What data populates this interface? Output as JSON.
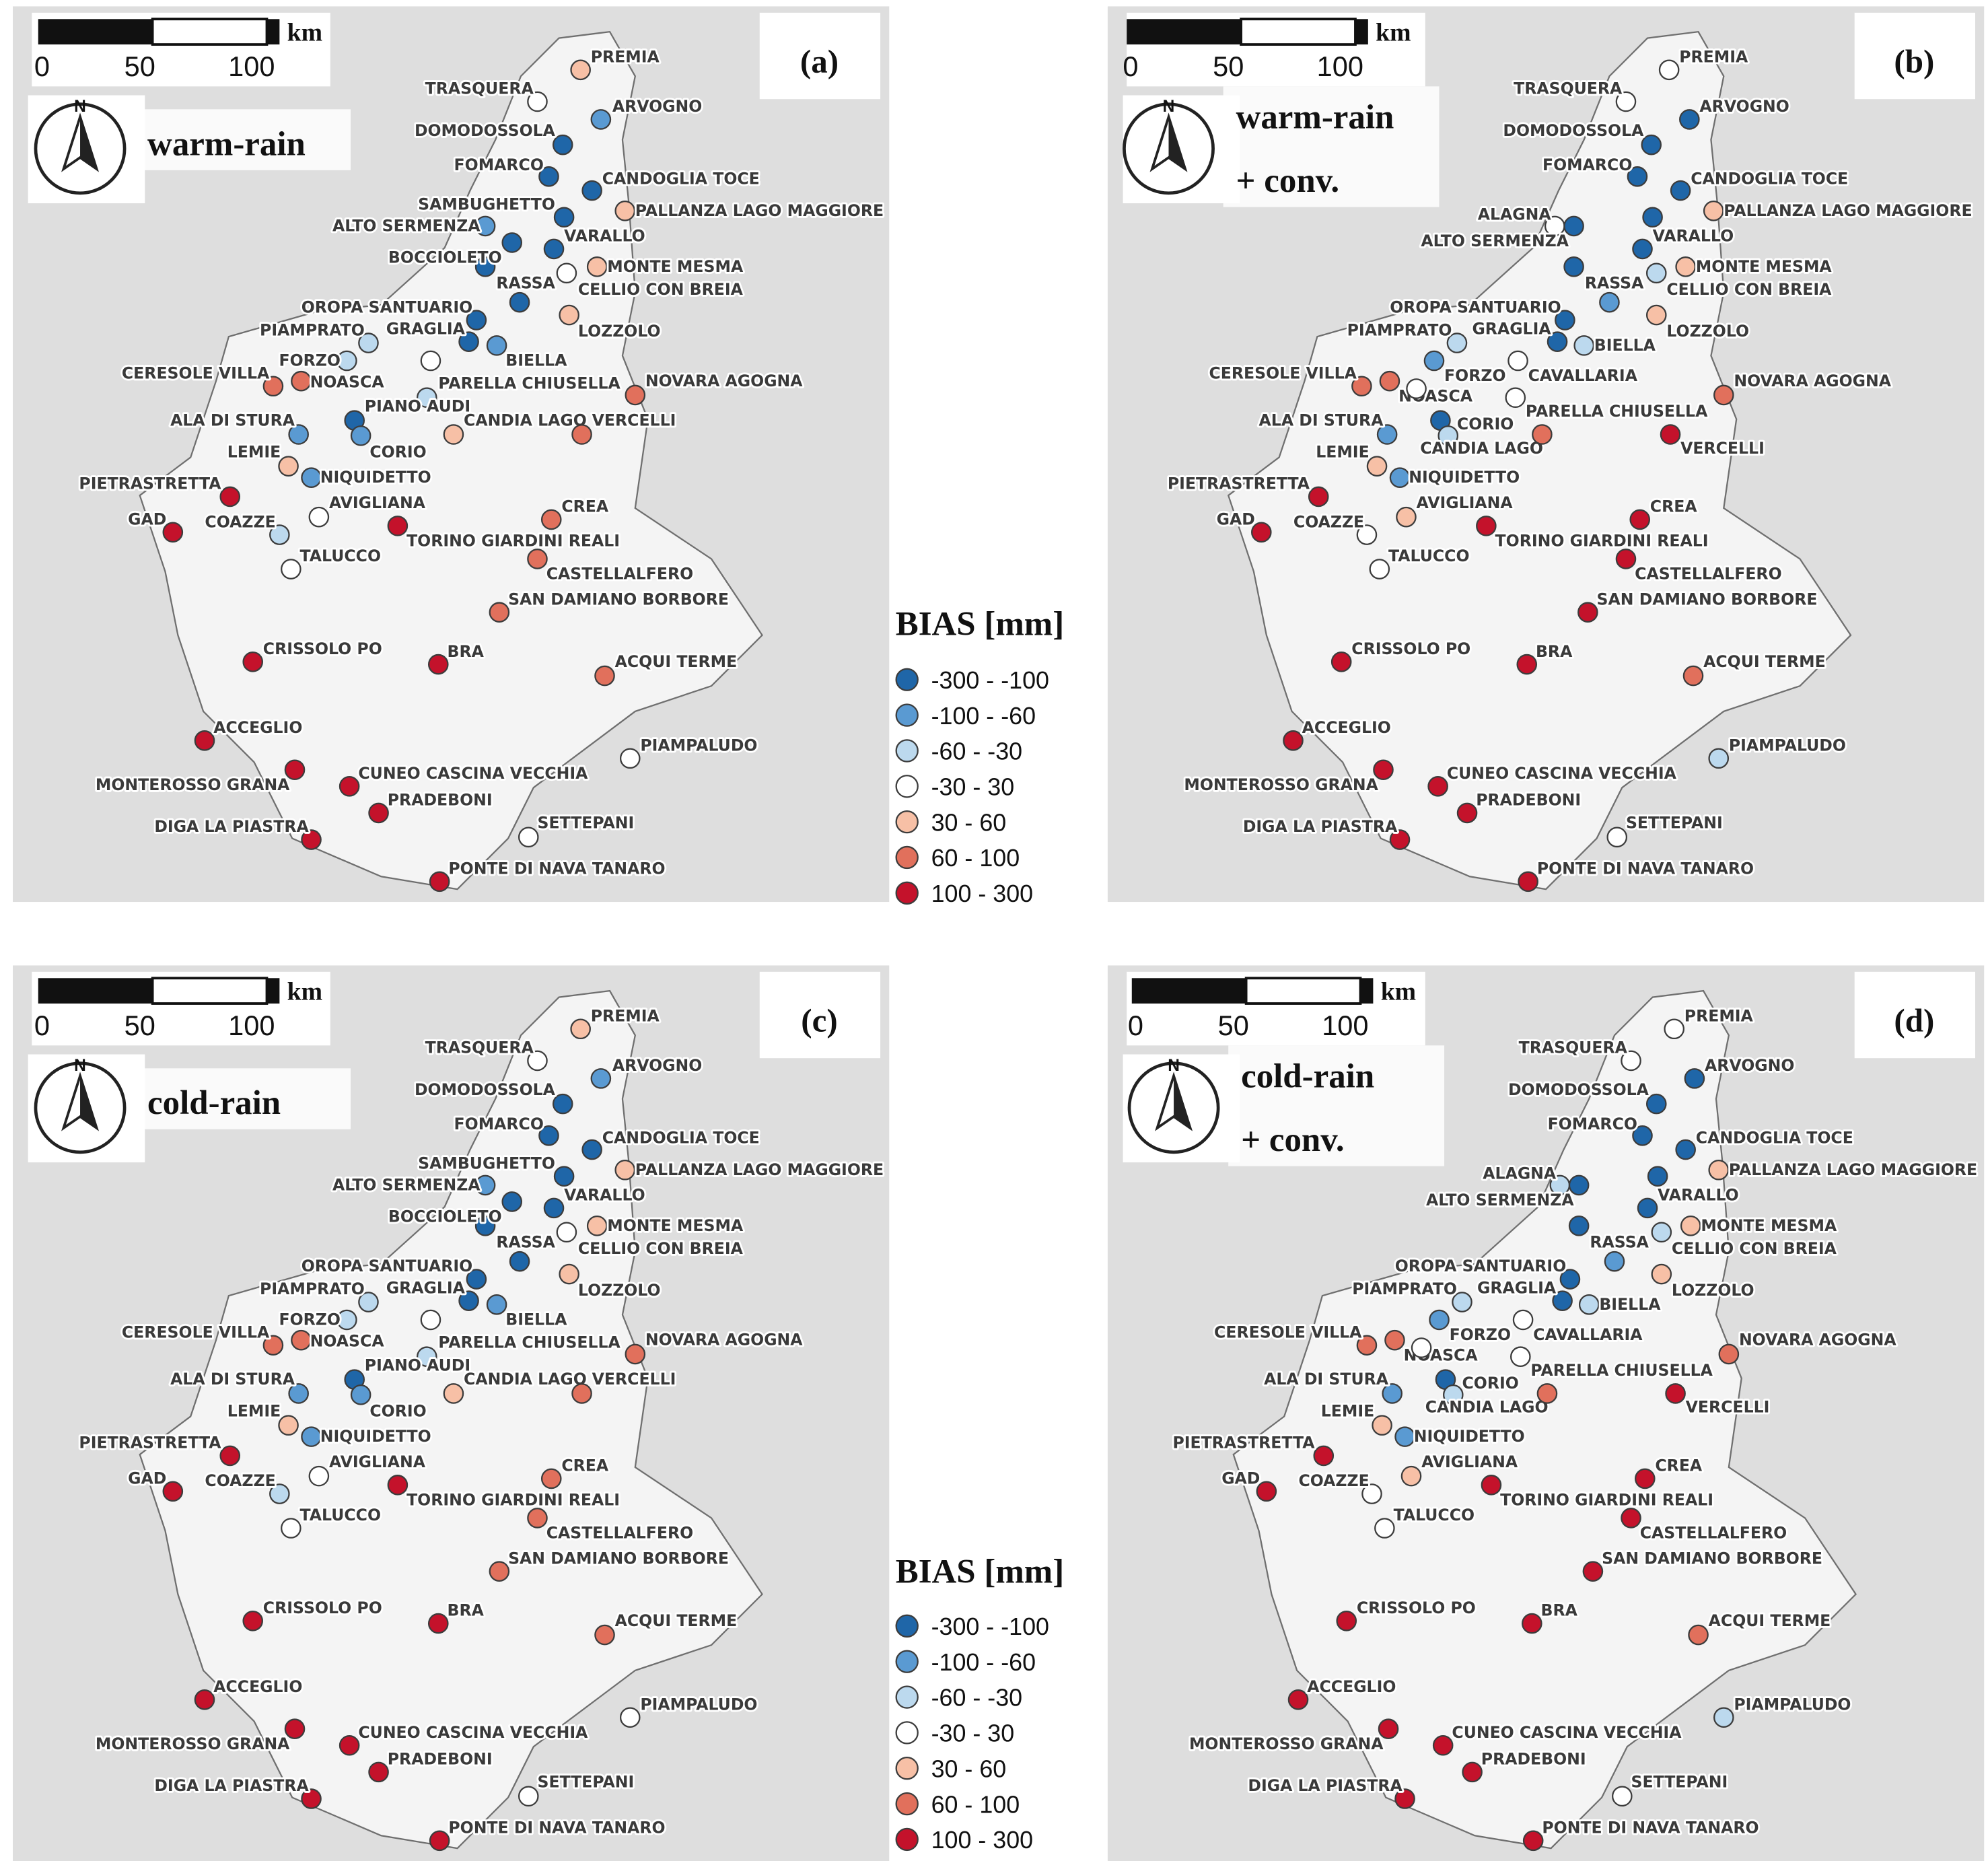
{
  "north": "N",
  "scalebar": {
    "ticks": [
      0,
      50,
      100
    ],
    "unit": "km"
  },
  "legend": {
    "title": "BIAS [mm]",
    "classes": [
      {
        "label": "-300 - -100",
        "color": "#1f66a8"
      },
      {
        "label": "-100 - -60",
        "color": "#5a9ad2"
      },
      {
        "label": "-60 - -30",
        "color": "#bcd9ee"
      },
      {
        "label": "-30 - 30",
        "color": "#ffffff"
      },
      {
        "label": "30 - 60",
        "color": "#f7c0a6"
      },
      {
        "label": "60 - 100",
        "color": "#e1705c"
      },
      {
        "label": "100 - 300",
        "color": "#c4122b"
      }
    ]
  },
  "panels": [
    {
      "label": "(a)",
      "title": [
        "warm-rain"
      ],
      "station_names": [
        "PREMIA",
        "TRASQUERA",
        "ARVOGNO",
        "DOMODOSSOLA",
        "FOMARCO",
        "CANDOGLIA TOCE",
        "SAMBUGHETTO",
        "PALLANZA LAGO MAGGIORE",
        "ALTO SERMENZA",
        "VARALLO",
        null,
        "BOCCIOLETO",
        "RASSA",
        "MONTE MESMA",
        "CELLIO CON BREIA",
        "OROPA SANTUARIO",
        "LOZZOLO",
        "PIAMPRATO",
        "GRAGLIA",
        "BIELLA",
        "FORZO",
        "CERESOLE VILLA",
        "NOASCA",
        null,
        "PARELLA CHIUSELLA",
        "NOVARA AGOGNA",
        "PIANO AUDI",
        "CORIO",
        "ALA DI STURA",
        "CANDIA LAGO",
        "VERCELLI",
        "LEMIE",
        "NIQUIDETTO",
        "PIETRASTRETTA",
        "AVIGLIANA",
        "GAD",
        "COAZZE",
        "TORINO GIARDINI REALI",
        "CREA",
        "TALUCCO",
        "CASTELLALFERO",
        "SAN DAMIANO BORBORE",
        "CRISSOLO PO",
        "BRA",
        "ACQUI TERME",
        "ACCEGLIO",
        "PIAMPALUDO",
        "MONTEROSSO GRANA",
        "CUNEO CASCINA VECCHIA",
        "PRADEBONI",
        "DIGA LA PIASTRA",
        "SETTEPANI",
        "PONTE DI NAVA TANARO"
      ],
      "station_colors": [
        "#f7c0a6",
        "#ffffff",
        "#5a9ad2",
        "#1f66a8",
        "#1f66a8",
        "#1f66a8",
        "#1f66a8",
        "#f7c0a6",
        "#5a9ad2",
        "#1f66a8",
        "#1f66a8",
        "#1f66a8",
        "#1f66a8",
        "#f7c0a6",
        "#ffffff",
        "#1f66a8",
        "#f7c0a6",
        "#bcd9ee",
        "#1f66a8",
        "#5a9ad2",
        "#bcd9ee",
        "#e1705c",
        "#e1705c",
        "#ffffff",
        "#bcd9ee",
        "#e1705c",
        "#1f66a8",
        "#5a9ad2",
        "#5a9ad2",
        "#f7c0a6",
        "#e1705c",
        "#f7c0a6",
        "#5a9ad2",
        "#c4122b",
        "#ffffff",
        "#c4122b",
        "#bcd9ee",
        "#c4122b",
        "#e1705c",
        "#ffffff",
        "#e1705c",
        "#e1705c",
        "#c4122b",
        "#c4122b",
        "#e1705c",
        "#c4122b",
        "#ffffff",
        "#c4122b",
        "#c4122b",
        "#c4122b",
        "#c4122b",
        "#ffffff",
        "#c4122b"
      ]
    },
    {
      "label": "(b)",
      "title": [
        "warm-rain",
        "+ conv."
      ],
      "station_names": [
        "PREMIA",
        "TRASQUERA",
        "ARVOGNO",
        "DOMODOSSOLA",
        "FOMARCO",
        "CANDOGLIA TOCE",
        "PALLANZA LAGO MAGGIORE",
        "ALAGNA",
        "ALTO SERMENZA",
        "VARALLO",
        null,
        null,
        "MONTE MESMA",
        "CELLIO CON BREIA",
        "RASSA",
        "OROPA SANTUARIO",
        "LOZZOLO",
        "GRAGLIA",
        "PIAMPRATO",
        "BIELLA",
        "FORZO",
        "CAVALLARIA",
        "CERESOLE VILLA",
        "NOASCA",
        null,
        "PARELLA CHIUSELLA",
        "NOVARA AGOGNA",
        "CORIO",
        "CANDIA LAGO",
        null,
        "ALA DI STURA",
        "VERCELLI",
        "LEMIE",
        "NIQUIDETTO",
        "PIETRASTRETTA",
        "AVIGLIANA",
        "GAD",
        "COAZZE",
        "CREA",
        "TORINO GIARDINI REALI",
        "TALUCCO",
        "CASTELLALFERO",
        "SAN DAMIANO BORBORE",
        "CRISSOLO PO",
        "BRA",
        "ACQUI TERME",
        "ACCEGLIO",
        "PIAMPALUDO",
        "MONTEROSSO GRANA",
        "CUNEO CASCINA VECCHIA",
        "PRADEBONI",
        "DIGA LA PIASTRA",
        "SETTEPANI",
        "PONTE DI NAVA TANARO"
      ],
      "station_colors": [
        "#ffffff",
        "#ffffff",
        "#1f66a8",
        "#1f66a8",
        "#1f66a8",
        "#1f66a8",
        "#f7c0a6",
        "#ffffff",
        "#1f66a8",
        "#1f66a8",
        "#1f66a8",
        "#1f66a8",
        "#f7c0a6",
        "#bcd9ee",
        "#5a9ad2",
        "#1f66a8",
        "#f7c0a6",
        "#1f66a8",
        "#bcd9ee",
        "#bcd9ee",
        "#5a9ad2",
        "#ffffff",
        "#e1705c",
        "#e1705c",
        "#ffffff",
        "#ffffff",
        "#e1705c",
        "#1f66a8",
        "#bcd9ee",
        "#e1705c",
        "#5a9ad2",
        "#c4122b",
        "#f7c0a6",
        "#5a9ad2",
        "#c4122b",
        "#f7c0a6",
        "#c4122b",
        "#ffffff",
        "#c4122b",
        "#c4122b",
        "#ffffff",
        "#c4122b",
        "#c4122b",
        "#c4122b",
        "#c4122b",
        "#e1705c",
        "#c4122b",
        "#bcd9ee",
        "#c4122b",
        "#c4122b",
        "#c4122b",
        "#c4122b",
        "#ffffff",
        "#c4122b"
      ]
    },
    {
      "label": "(c)",
      "title": [
        "cold-rain"
      ],
      "station_names": [
        "PREMIA",
        "TRASQUERA",
        "ARVOGNO",
        "DOMODOSSOLA",
        "FOMARCO",
        "CANDOGLIA TOCE",
        "SAMBUGHETTO",
        "PALLANZA LAGO MAGGIORE",
        "ALTO SERMENZA",
        "VARALLO",
        null,
        "BOCCIOLETO",
        "RASSA",
        "MONTE MESMA",
        "CELLIO CON BREIA",
        "OROPA SANTUARIO",
        "LOZZOLO",
        "PIAMPRATO",
        "GRAGLIA",
        "BIELLA",
        "FORZO",
        "CERESOLE VILLA",
        "NOASCA",
        null,
        "PARELLA CHIUSELLA",
        "NOVARA AGOGNA",
        "PIANO AUDI",
        "CORIO",
        "ALA DI STURA",
        "CANDIA LAGO",
        "VERCELLI",
        "LEMIE",
        "NIQUIDETTO",
        "PIETRASTRETTA",
        "AVIGLIANA",
        "GAD",
        "COAZZE",
        "TORINO GIARDINI REALI",
        "CREA",
        "TALUCCO",
        "CASTELLALFERO",
        "SAN DAMIANO BORBORE",
        "CRISSOLO PO",
        "BRA",
        "ACQUI TERME",
        "ACCEGLIO",
        "PIAMPALUDO",
        "MONTEROSSO GRANA",
        "CUNEO CASCINA VECCHIA",
        "PRADEBONI",
        "DIGA LA PIASTRA",
        "SETTEPANI",
        "PONTE DI NAVA TANARO"
      ],
      "station_colors": [
        "#f7c0a6",
        "#ffffff",
        "#5a9ad2",
        "#1f66a8",
        "#1f66a8",
        "#1f66a8",
        "#1f66a8",
        "#f7c0a6",
        "#5a9ad2",
        "#1f66a8",
        "#1f66a8",
        "#1f66a8",
        "#1f66a8",
        "#f7c0a6",
        "#ffffff",
        "#1f66a8",
        "#f7c0a6",
        "#bcd9ee",
        "#1f66a8",
        "#5a9ad2",
        "#bcd9ee",
        "#e1705c",
        "#e1705c",
        "#ffffff",
        "#bcd9ee",
        "#e1705c",
        "#1f66a8",
        "#5a9ad2",
        "#5a9ad2",
        "#f7c0a6",
        "#e1705c",
        "#f7c0a6",
        "#5a9ad2",
        "#c4122b",
        "#ffffff",
        "#c4122b",
        "#bcd9ee",
        "#c4122b",
        "#e1705c",
        "#ffffff",
        "#e1705c",
        "#e1705c",
        "#c4122b",
        "#c4122b",
        "#e1705c",
        "#c4122b",
        "#ffffff",
        "#c4122b",
        "#c4122b",
        "#c4122b",
        "#c4122b",
        "#ffffff",
        "#c4122b"
      ]
    },
    {
      "label": "(d)",
      "title": [
        "cold-rain",
        "+ conv."
      ],
      "station_names": [
        "PREMIA",
        "TRASQUERA",
        "ARVOGNO",
        "DOMODOSSOLA",
        "FOMARCO",
        "CANDOGLIA TOCE",
        "PALLANZA LAGO MAGGIORE",
        "ALAGNA",
        "ALTO SERMENZA",
        "VARALLO",
        null,
        null,
        "MONTE MESMA",
        "CELLIO CON BREIA",
        "RASSA",
        "OROPA SANTUARIO",
        "LOZZOLO",
        "GRAGLIA",
        "PIAMPRATO",
        "BIELLA",
        "FORZO",
        "CAVALLARIA",
        "CERESOLE VILLA",
        "NOASCA",
        null,
        "PARELLA CHIUSELLA",
        "NOVARA AGOGNA",
        "CORIO",
        "CANDIA LAGO",
        null,
        "ALA DI STURA",
        "VERCELLI",
        "LEMIE",
        "NIQUIDETTO",
        "PIETRASTRETTA",
        "AVIGLIANA",
        "GAD",
        "COAZZE",
        "CREA",
        "TORINO GIARDINI REALI",
        "TALUCCO",
        "CASTELLALFERO",
        "SAN DAMIANO BORBORE",
        "CRISSOLO PO",
        "BRA",
        "ACQUI TERME",
        "ACCEGLIO",
        "PIAMPALUDO",
        "MONTEROSSO GRANA",
        "CUNEO CASCINA VECCHIA",
        "PRADEBONI",
        "DIGA LA PIASTRA",
        "SETTEPANI",
        "PONTE DI NAVA TANARO"
      ],
      "station_colors": [
        "#ffffff",
        "#ffffff",
        "#1f66a8",
        "#1f66a8",
        "#1f66a8",
        "#1f66a8",
        "#f7c0a6",
        "#bcd9ee",
        "#1f66a8",
        "#1f66a8",
        "#1f66a8",
        "#1f66a8",
        "#f7c0a6",
        "#bcd9ee",
        "#5a9ad2",
        "#1f66a8",
        "#f7c0a6",
        "#1f66a8",
        "#bcd9ee",
        "#bcd9ee",
        "#5a9ad2",
        "#ffffff",
        "#e1705c",
        "#e1705c",
        "#ffffff",
        "#ffffff",
        "#e1705c",
        "#1f66a8",
        "#bcd9ee",
        "#e1705c",
        "#5a9ad2",
        "#c4122b",
        "#f7c0a6",
        "#5a9ad2",
        "#c4122b",
        "#f7c0a6",
        "#c4122b",
        "#ffffff",
        "#c4122b",
        "#c4122b",
        "#ffffff",
        "#c4122b",
        "#c4122b",
        "#c4122b",
        "#c4122b",
        "#e1705c",
        "#c4122b",
        "#bcd9ee",
        "#c4122b",
        "#c4122b",
        "#c4122b",
        "#c4122b",
        "#ffffff",
        "#c4122b"
      ]
    }
  ]
}
